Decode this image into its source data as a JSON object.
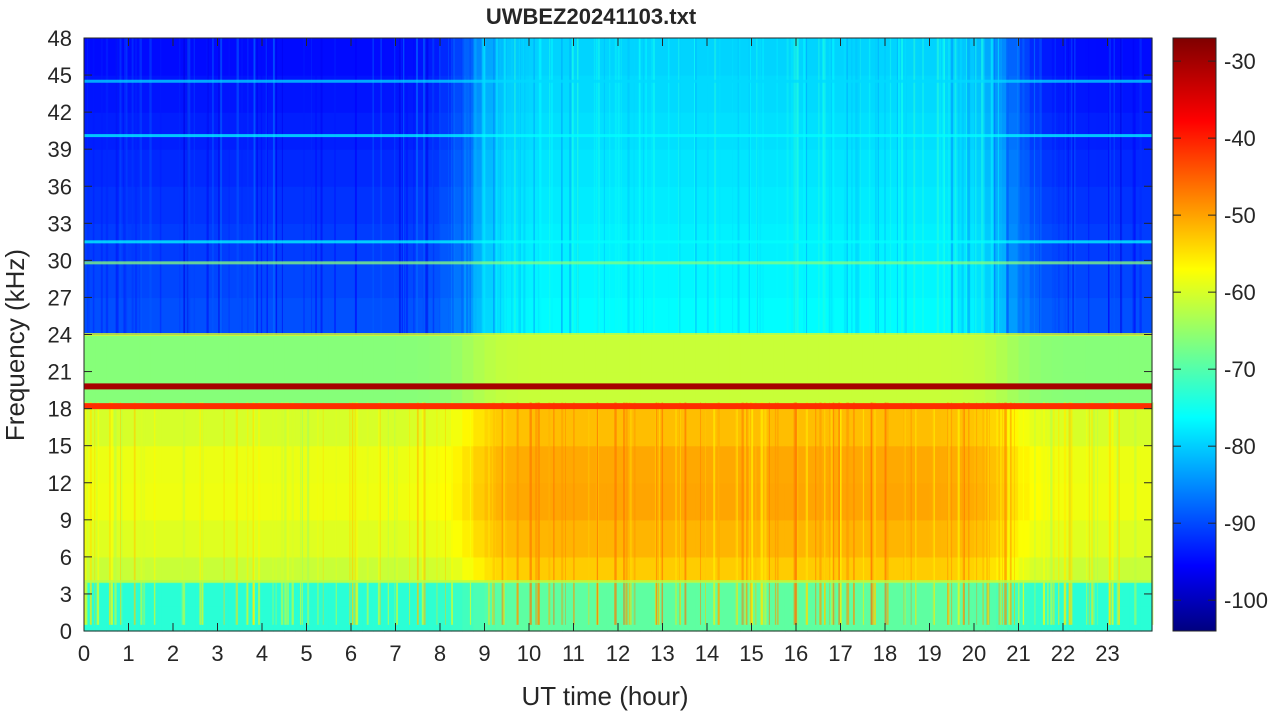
{
  "chart_data": {
    "type": "heatmap",
    "title": "UWBEZ20241103.txt",
    "xlabel": "UT time (hour)",
    "ylabel": "Frequency (kHz)",
    "xlim": [
      0,
      24
    ],
    "ylim": [
      0,
      48
    ],
    "x_ticks": [
      "0",
      "1",
      "2",
      "3",
      "4",
      "5",
      "6",
      "7",
      "8",
      "9",
      "10",
      "11",
      "12",
      "13",
      "14",
      "15",
      "16",
      "17",
      "18",
      "19",
      "20",
      "21",
      "22",
      "23"
    ],
    "y_ticks": [
      "0",
      "3",
      "6",
      "9",
      "12",
      "15",
      "18",
      "21",
      "24",
      "27",
      "30",
      "33",
      "36",
      "39",
      "42",
      "45",
      "48"
    ],
    "colorbar": {
      "colormap": "jet",
      "clim": [
        -104,
        -27
      ],
      "ticks": [
        "-30",
        "-40",
        "-50",
        "-60",
        "-70",
        "-80",
        "-90",
        "-100"
      ]
    },
    "approx_levels_db": {
      "upper_band_night_24_48kHz": -88,
      "upper_band_day_24_48kHz": -75,
      "lower_band_night_5_18kHz": -60,
      "lower_band_day_5_18kHz": -52,
      "below_5kHz": -72
    },
    "narrowband_lines_khz": [
      {
        "freq": 19.8,
        "level_db": -30
      },
      {
        "freq": 18.2,
        "level_db": -40
      },
      {
        "freq": 40.1,
        "level_db": -75
      },
      {
        "freq": 29.8,
        "level_db": -65
      },
      {
        "freq": 24.0,
        "level_db": -58
      },
      {
        "freq": 31.5,
        "level_db": -75
      },
      {
        "freq": 44.5,
        "level_db": -78
      },
      {
        "freq": 4.0,
        "level_db": -62
      }
    ]
  }
}
